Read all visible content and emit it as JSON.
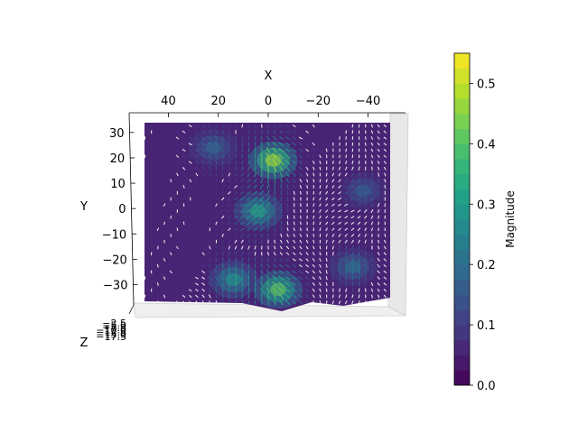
{
  "chart_data": {
    "type": "quiver3d",
    "view": "top-down",
    "xlabel": "X",
    "ylabel": "Y",
    "zlabel": "Z",
    "xlim": [
      55,
      -55
    ],
    "ylim": [
      -38,
      36
    ],
    "x_ticks": [
      "40",
      "20",
      "0",
      "−20",
      "−40"
    ],
    "x_tick_values": [
      40,
      20,
      0,
      -20,
      -40
    ],
    "y_ticks": [
      "30",
      "20",
      "10",
      "0",
      "−10",
      "−20",
      "−30"
    ],
    "y_tick_values": [
      30,
      20,
      10,
      0,
      -10,
      -20,
      -30
    ],
    "z_ticks": [
      "−2.5",
      "−5.0",
      "−7.5",
      "−10.0",
      "−12.5",
      "−15.0",
      "−17.5"
    ],
    "colorbar": {
      "label": "Magnitude",
      "ticks": [
        "0.0",
        "0.1",
        "0.2",
        "0.3",
        "0.4",
        "0.5"
      ],
      "tick_values": [
        0.0,
        0.1,
        0.2,
        0.3,
        0.4,
        0.5
      ],
      "range": [
        0.0,
        0.55
      ],
      "colormap": "viridis",
      "levels": 22
    },
    "hotspots": [
      {
        "x": -2,
        "y": 19,
        "magnitude": 0.48
      },
      {
        "x": 4,
        "y": -1,
        "magnitude": 0.33
      },
      {
        "x": -4,
        "y": -32,
        "magnitude": 0.42
      },
      {
        "x": 14,
        "y": -28,
        "magnitude": 0.3
      },
      {
        "x": -34,
        "y": -23,
        "magnitude": 0.22
      },
      {
        "x": -38,
        "y": 7,
        "magnitude": 0.18
      },
      {
        "x": 22,
        "y": 24,
        "magnitude": 0.2
      }
    ],
    "base_magnitude": 0.06
  }
}
